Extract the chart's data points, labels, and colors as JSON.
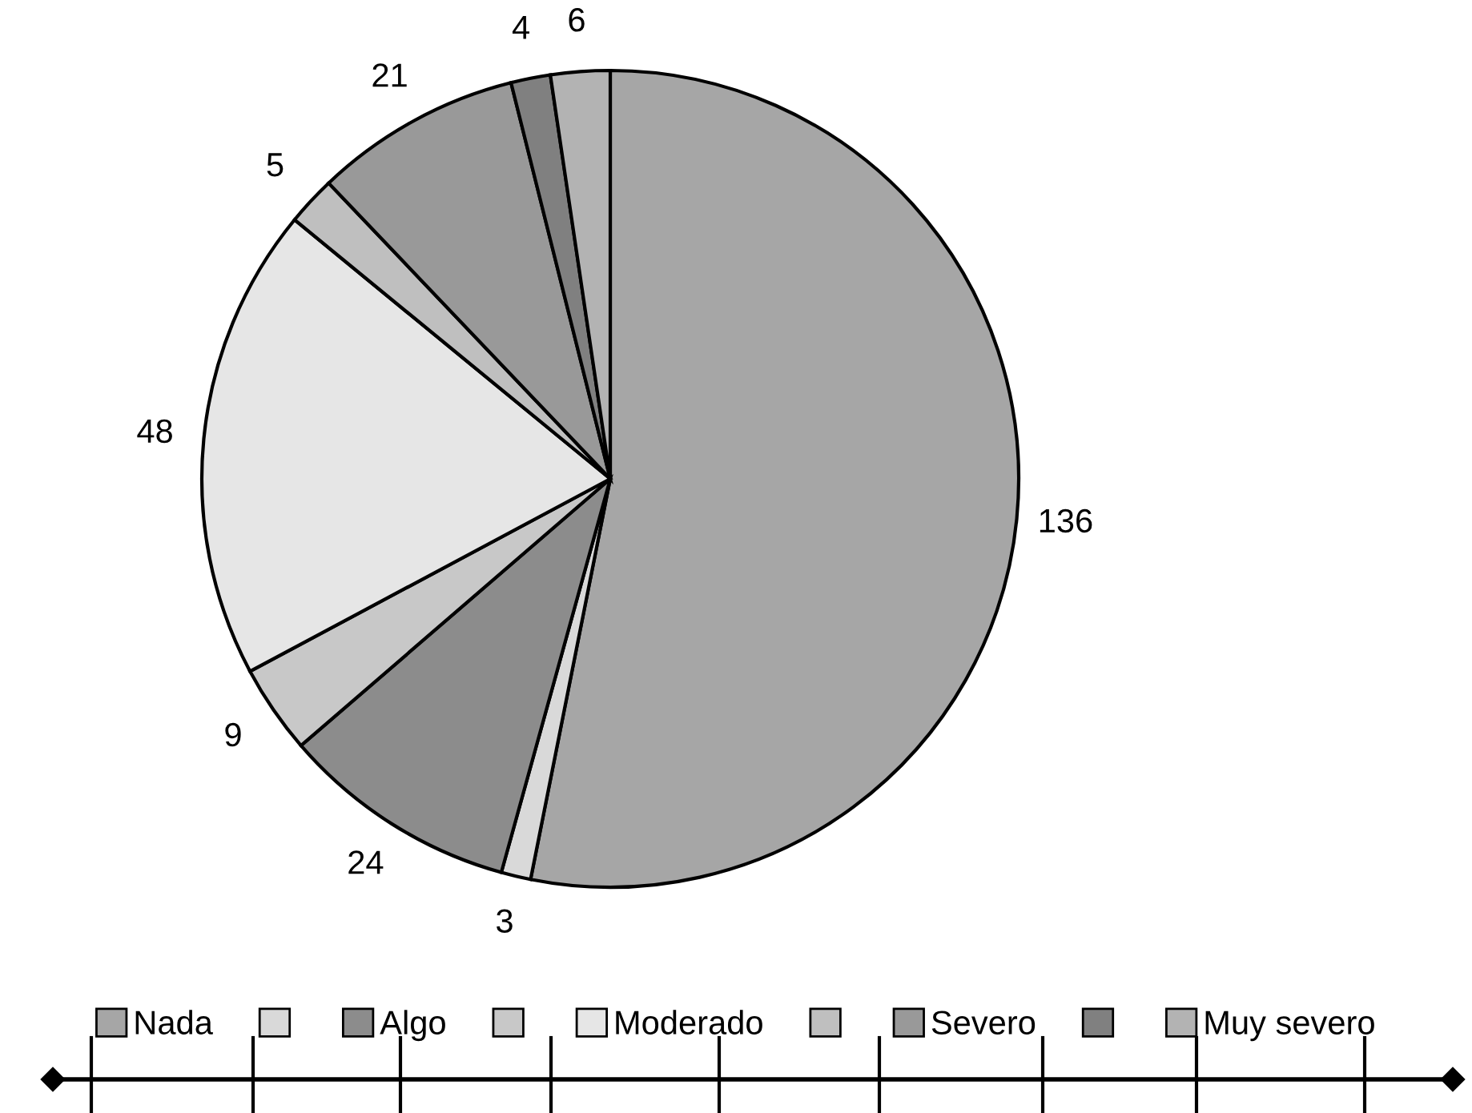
{
  "chart_data": {
    "type": "pie",
    "categories": [
      "Nada",
      null,
      "Algo",
      null,
      "Moderado",
      null,
      "Severo",
      null,
      "Muy severo"
    ],
    "values": [
      136,
      3,
      24,
      9,
      48,
      5,
      21,
      4,
      6
    ],
    "colors": [
      "#a6a6a6",
      "#d9d9d9",
      "#8c8c8c",
      "#c8c8c8",
      "#e6e6e6",
      "#bfbfbf",
      "#999999",
      "#808080",
      "#b3b3b3"
    ],
    "data_labels": true,
    "legend": "bottom"
  }
}
